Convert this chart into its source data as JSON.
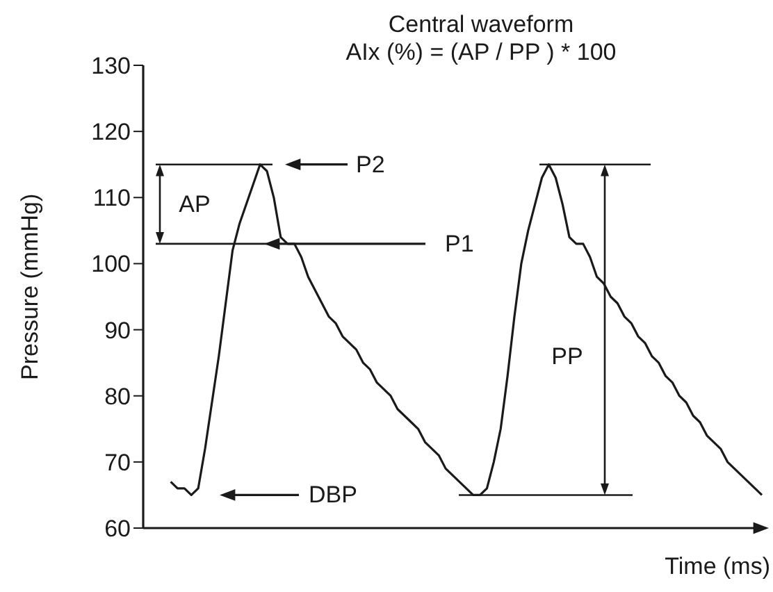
{
  "chart_data": {
    "type": "line",
    "title": "Central waveform",
    "subtitle": "AIx (%) = (AP / PP ) * 100",
    "xlabel": "Time (ms)",
    "ylabel": "Pressure (mmHg)",
    "categories": [
      null,
      null,
      null,
      null,
      null,
      null,
      null,
      null,
      null,
      null,
      null,
      null,
      null,
      null,
      null,
      null,
      null,
      null,
      null,
      null,
      null,
      null,
      null,
      null,
      null,
      null,
      null,
      null,
      null,
      null,
      null,
      null,
      null,
      null,
      null,
      null,
      null,
      null,
      null,
      null,
      null,
      null,
      null,
      null,
      null,
      null,
      null,
      null,
      null,
      null,
      null,
      null,
      null,
      null,
      null,
      null,
      null,
      null,
      null,
      null,
      null,
      null,
      null,
      null,
      null,
      null,
      null,
      null,
      null,
      null,
      null,
      null,
      null,
      null,
      null,
      null,
      null,
      null,
      null,
      null,
      null,
      null,
      null,
      null,
      null,
      null,
      null,
      null,
      null,
      null,
      null
    ],
    "series": [
      {
        "color": "#1a1a1a",
        "values": [
          null,
          null,
          null,
          null,
          67,
          66,
          66,
          65,
          66,
          72,
          79,
          86,
          94,
          102,
          106,
          109,
          112,
          115,
          114,
          110,
          104,
          103,
          103,
          101,
          98,
          96,
          94,
          92,
          91,
          89,
          88,
          87,
          85,
          84,
          82,
          81,
          80,
          78,
          77,
          76,
          75,
          73,
          72,
          71,
          69,
          68,
          67,
          66,
          65,
          65,
          66,
          70,
          75,
          83,
          92,
          100,
          105,
          109,
          113,
          115,
          113,
          109,
          104,
          103,
          103,
          101,
          98,
          97,
          95,
          94,
          92,
          91,
          89,
          88,
          86,
          85,
          83,
          82,
          80,
          79,
          77,
          76,
          74,
          73,
          72,
          70,
          69,
          68,
          67,
          66,
          65
        ]
      }
    ],
    "ylim": [
      60,
      130
    ],
    "yticks": [
      60,
      70,
      80,
      90,
      100,
      110,
      120,
      130
    ],
    "tick_labels": "y",
    "annotations": [
      "P2",
      "P1",
      "DBP",
      "AP",
      "PP"
    ]
  }
}
